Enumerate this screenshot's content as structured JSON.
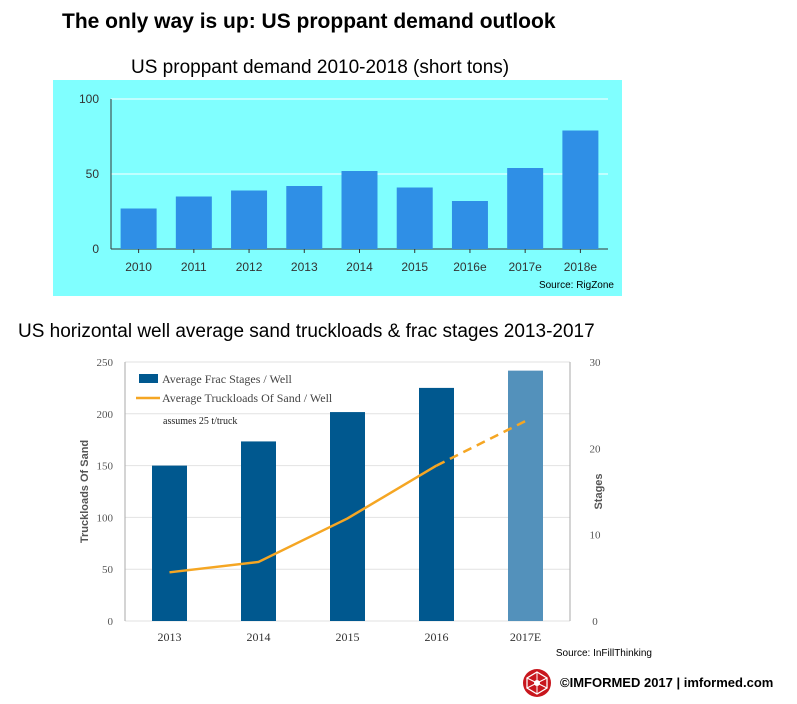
{
  "page": {
    "title": "The only way is up: US proppant demand outlook",
    "footer_text": "©IMFORMED 2017  | imformed.com",
    "logo_name": "imformed-logo"
  },
  "colors": {
    "chart1_background": "#80ffff",
    "chart1_bar": "#2f8fe6",
    "chart2_bar": "#00588f",
    "chart2_bar_estimate": "#5391bb",
    "chart2_line": "#f5a623",
    "logo_red": "#c8161d"
  },
  "chart_data": [
    {
      "type": "bar",
      "title": "US proppant  demand  2010-2018 (short tons)",
      "categories": [
        "2010",
        "2011",
        "2012",
        "2013",
        "2014",
        "2015",
        "2016e",
        "2017e",
        "2018e"
      ],
      "values": [
        27,
        35,
        39,
        42,
        52,
        41,
        32,
        54,
        79
      ],
      "ylim": [
        0,
        100
      ],
      "yticks": [
        "0",
        "50",
        "100"
      ],
      "grid": true,
      "source": "Source: RigZone"
    },
    {
      "type": "bar",
      "title": "US horizontal  well average sand truckloads  & frac stages 2013-2017",
      "categories": [
        "2013",
        "2014",
        "2015",
        "2016",
        "2017E"
      ],
      "series": [
        {
          "name": "Average Frac Stages / Well",
          "type": "bar",
          "axis": "right",
          "values": [
            18,
            20.8,
            24.2,
            27,
            29
          ]
        },
        {
          "name": "Average Truckloads Of Sand / Well",
          "type": "line",
          "axis": "left",
          "values": [
            47,
            57,
            99,
            150,
            193
          ],
          "dashed_from_index": 3
        }
      ],
      "left_axis": {
        "label": "Truckloads Of Sand",
        "range": [
          0,
          250
        ],
        "ticks": [
          "0",
          "50",
          "100",
          "150",
          "200",
          "250"
        ]
      },
      "right_axis": {
        "label": "Stages",
        "range": [
          0,
          30
        ],
        "ticks": [
          "0",
          "10",
          "20",
          "30"
        ]
      },
      "annotation": "assumes 25 t/truck",
      "legend_position": "top-left",
      "source": "Source: InFillThinking"
    }
  ]
}
